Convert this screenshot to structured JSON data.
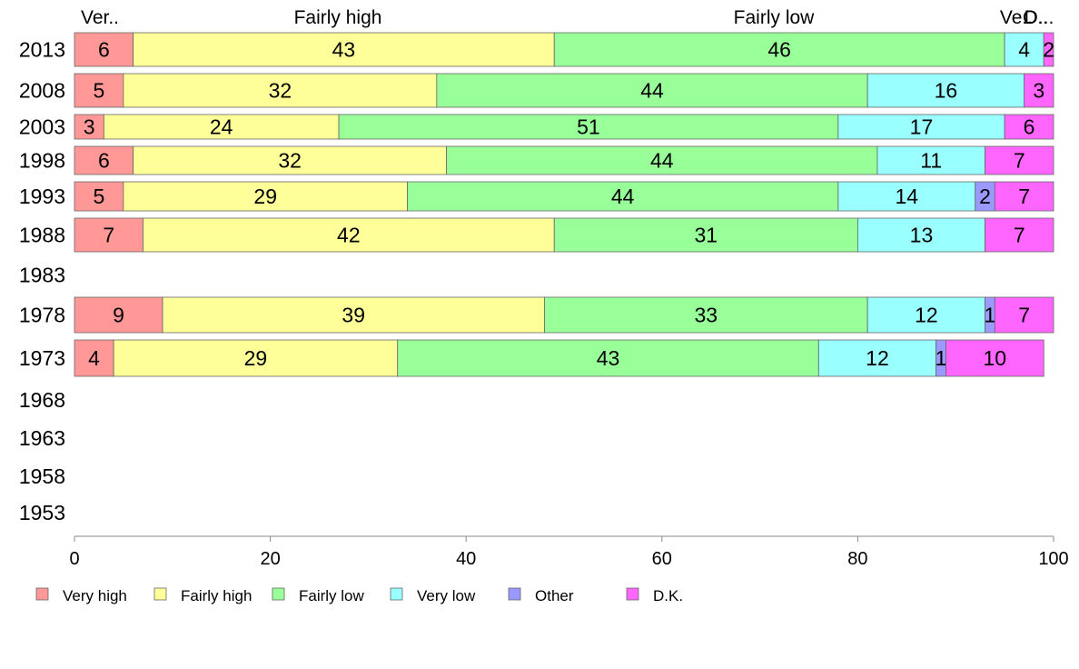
{
  "chart_data": {
    "type": "bar",
    "orientation": "horizontal",
    "stacked": true,
    "categories": [
      "2013",
      "2008",
      "2003",
      "1998",
      "1993",
      "1988",
      "1983",
      "1978",
      "1973",
      "1968",
      "1963",
      "1958",
      "1953"
    ],
    "series": [
      {
        "name": "Very high",
        "color": "#ff9896",
        "values": [
          6,
          5,
          3,
          6,
          5,
          7,
          null,
          9,
          4,
          null,
          null,
          null,
          null
        ]
      },
      {
        "name": "Fairly high",
        "color": "#ffff99",
        "values": [
          43,
          32,
          24,
          32,
          29,
          42,
          null,
          39,
          29,
          null,
          null,
          null,
          null
        ]
      },
      {
        "name": "Fairly low",
        "color": "#99ff99",
        "values": [
          46,
          44,
          51,
          44,
          44,
          31,
          null,
          33,
          43,
          null,
          null,
          null,
          null
        ]
      },
      {
        "name": "Very low",
        "color": "#99ffff",
        "values": [
          4,
          16,
          17,
          11,
          14,
          13,
          null,
          12,
          12,
          null,
          null,
          null,
          null
        ]
      },
      {
        "name": "Other",
        "color": "#9999ff",
        "values": [
          0,
          0,
          0,
          0,
          2,
          0,
          null,
          1,
          1,
          null,
          null,
          null,
          null
        ]
      },
      {
        "name": "D.K.",
        "color": "#ff66ff",
        "values": [
          2,
          3,
          6,
          7,
          7,
          7,
          null,
          7,
          10,
          null,
          null,
          null,
          null
        ]
      }
    ],
    "header_labels": [
      "Ver..",
      "Fairly high",
      "Fairly low",
      "Ve..",
      "O..",
      "D..."
    ],
    "xlim": [
      0,
      100
    ],
    "xticks": [
      0,
      20,
      40,
      60,
      80,
      100
    ],
    "xlabel": "",
    "ylabel": "",
    "title": "",
    "grid": false,
    "legend_position": "bottom-left"
  }
}
